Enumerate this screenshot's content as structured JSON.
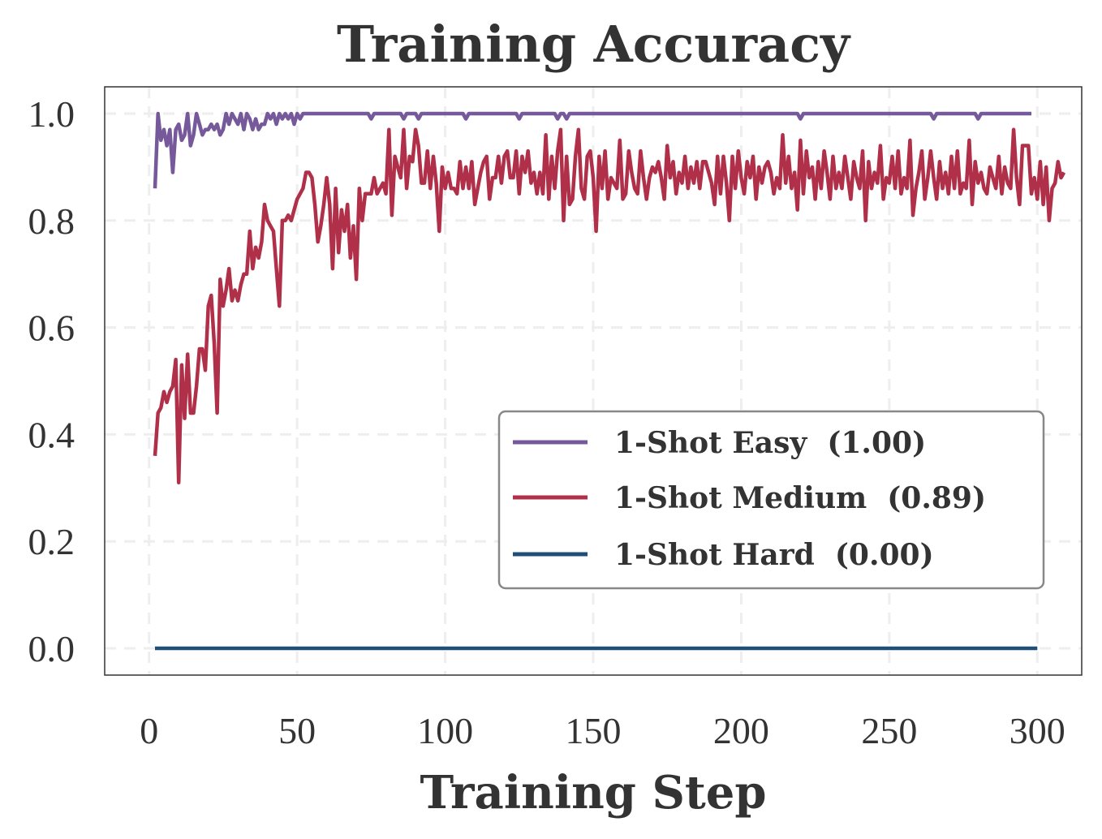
{
  "chart_data": {
    "type": "line",
    "title": "Training Accuracy",
    "xlabel": "Training Step",
    "ylabel": "",
    "xlim": [
      -15,
      315
    ],
    "ylim": [
      -0.05,
      1.05
    ],
    "xticks": [
      0,
      50,
      100,
      150,
      200,
      250,
      300
    ],
    "yticks": [
      0.0,
      0.2,
      0.4,
      0.6,
      0.8,
      1.0
    ],
    "ytick_labels": [
      "0.0",
      "0.2",
      "0.4",
      "0.6",
      "0.8",
      "1.0"
    ],
    "xtick_labels": [
      "0",
      "50",
      "100",
      "150",
      "200",
      "250",
      "300"
    ],
    "grid": true,
    "legend_position": "center-right",
    "series": [
      {
        "name": "1-Shot Easy",
        "legend_label": "1-Shot Easy  (1.00)",
        "color": "#76599a",
        "x_start": 2,
        "values": [
          0.86,
          1.0,
          0.95,
          0.97,
          0.94,
          0.97,
          0.89,
          0.97,
          0.98,
          0.95,
          0.96,
          1.0,
          0.94,
          0.96,
          1.0,
          0.98,
          0.96,
          0.97,
          0.97,
          0.98,
          0.97,
          0.98,
          0.96,
          0.97,
          1.0,
          0.98,
          1.0,
          0.99,
          0.98,
          1.0,
          0.97,
          1.0,
          0.99,
          0.97,
          0.99,
          0.97,
          0.98,
          0.98,
          1.0,
          0.99,
          1.0,
          0.98,
          1.0,
          0.99,
          1.0,
          0.99,
          1.0,
          0.98,
          1.0,
          0.99,
          1.0,
          1.0,
          1.0,
          1.0,
          1.0,
          1.0,
          1.0,
          1.0,
          1.0,
          1.0,
          1.0,
          1.0,
          1.0,
          1.0,
          1.0,
          1.0,
          1.0,
          1.0,
          1.0,
          1.0,
          1.0,
          1.0,
          1.0,
          0.99,
          1.0,
          1.0,
          1.0,
          1.0,
          1.0,
          1.0,
          1.0,
          1.0,
          1.0,
          1.0,
          0.99,
          1.0,
          1.0,
          1.0,
          1.0,
          0.99,
          1.0,
          1.0,
          1.0,
          1.0,
          1.0,
          1.0,
          1.0,
          1.0,
          1.0,
          1.0,
          1.0,
          1.0,
          1.0,
          1.0,
          1.0,
          0.99,
          1.0,
          1.0,
          1.0,
          1.0,
          1.0,
          1.0,
          1.0,
          1.0,
          1.0,
          1.0,
          1.0,
          1.0,
          1.0,
          1.0,
          1.0,
          1.0,
          1.0,
          0.99,
          1.0,
          1.0,
          1.0,
          1.0,
          1.0,
          1.0,
          1.0,
          1.0,
          1.0,
          1.0,
          1.0,
          1.0,
          0.99,
          1.0,
          1.0,
          0.99,
          1.0,
          1.0,
          1.0,
          1.0,
          1.0,
          1.0,
          1.0,
          1.0,
          1.0,
          1.0,
          1.0,
          1.0,
          1.0,
          1.0,
          1.0,
          1.0,
          1.0,
          1.0,
          1.0,
          1.0,
          1.0,
          1.0,
          1.0,
          1.0,
          1.0,
          1.0,
          1.0,
          1.0,
          1.0,
          1.0,
          1.0,
          1.0,
          1.0,
          1.0,
          1.0,
          1.0,
          1.0,
          1.0,
          1.0,
          1.0,
          1.0,
          1.0,
          1.0,
          1.0,
          1.0,
          1.0,
          1.0,
          1.0,
          1.0,
          1.0,
          1.0,
          1.0,
          1.0,
          1.0,
          1.0,
          1.0,
          1.0,
          1.0,
          1.0,
          1.0,
          1.0,
          1.0,
          1.0,
          1.0,
          1.0,
          1.0,
          1.0,
          1.0,
          1.0,
          1.0,
          1.0,
          1.0,
          1.0,
          1.0,
          1.0,
          1.0,
          1.0,
          1.0,
          0.99,
          1.0,
          1.0,
          1.0,
          1.0,
          1.0,
          1.0,
          1.0,
          1.0,
          1.0,
          1.0,
          1.0,
          1.0,
          1.0,
          1.0,
          1.0,
          1.0,
          1.0,
          1.0,
          1.0,
          1.0,
          1.0,
          1.0,
          1.0,
          1.0,
          1.0,
          1.0,
          1.0,
          1.0,
          1.0,
          1.0,
          1.0,
          1.0,
          1.0,
          1.0,
          1.0,
          1.0,
          1.0,
          1.0,
          1.0,
          1.0,
          1.0,
          1.0,
          1.0,
          1.0,
          0.99,
          1.0,
          1.0,
          1.0,
          1.0,
          1.0,
          1.0,
          1.0,
          1.0,
          1.0,
          1.0,
          1.0,
          1.0,
          1.0,
          1.0,
          0.99,
          1.0,
          1.0,
          1.0,
          1.0,
          1.0,
          1.0,
          1.0,
          1.0,
          1.0,
          1.0,
          1.0,
          1.0,
          1.0,
          1.0,
          1.0,
          1.0,
          1.0,
          1.0
        ]
      },
      {
        "name": "1-Shot Medium",
        "legend_label": "1-Shot Medium  (0.89)",
        "color": "#b0304a",
        "x_start": 2,
        "values": [
          0.36,
          0.44,
          0.45,
          0.48,
          0.46,
          0.48,
          0.49,
          0.54,
          0.31,
          0.53,
          0.43,
          0.55,
          0.44,
          0.44,
          0.49,
          0.56,
          0.56,
          0.52,
          0.64,
          0.66,
          0.57,
          0.44,
          0.69,
          0.64,
          0.67,
          0.71,
          0.65,
          0.67,
          0.65,
          0.68,
          0.7,
          0.7,
          0.78,
          0.71,
          0.75,
          0.73,
          0.76,
          0.83,
          0.8,
          0.79,
          0.78,
          0.71,
          0.64,
          0.8,
          0.8,
          0.81,
          0.8,
          0.82,
          0.84,
          0.85,
          0.86,
          0.89,
          0.89,
          0.88,
          0.83,
          0.76,
          0.79,
          0.83,
          0.88,
          0.83,
          0.71,
          0.86,
          0.74,
          0.82,
          0.78,
          0.83,
          0.73,
          0.79,
          0.69,
          0.86,
          0.8,
          0.85,
          0.85,
          0.85,
          0.88,
          0.85,
          0.86,
          0.87,
          0.85,
          0.97,
          0.81,
          0.92,
          0.9,
          0.88,
          0.97,
          0.86,
          0.92,
          0.91,
          0.97,
          0.94,
          0.87,
          0.87,
          0.93,
          0.86,
          0.92,
          0.87,
          0.78,
          0.9,
          0.86,
          0.89,
          0.86,
          0.86,
          0.85,
          0.91,
          0.86,
          0.9,
          0.86,
          0.91,
          0.83,
          0.86,
          0.89,
          0.91,
          0.92,
          0.84,
          0.88,
          0.88,
          0.92,
          0.87,
          0.92,
          0.93,
          0.88,
          0.88,
          0.93,
          0.85,
          0.92,
          0.89,
          0.93,
          0.87,
          0.89,
          0.85,
          0.89,
          0.85,
          0.96,
          0.84,
          0.92,
          0.86,
          0.93,
          0.97,
          0.8,
          0.92,
          0.83,
          0.84,
          0.92,
          0.97,
          0.86,
          0.84,
          0.92,
          0.93,
          0.88,
          0.78,
          0.92,
          0.86,
          0.93,
          0.84,
          0.88,
          0.87,
          0.86,
          0.95,
          0.84,
          0.85,
          0.93,
          0.89,
          0.86,
          0.85,
          0.93,
          0.88,
          0.84,
          0.88,
          0.9,
          0.89,
          0.91,
          0.88,
          0.84,
          0.94,
          0.88,
          0.91,
          0.85,
          0.89,
          0.87,
          0.92,
          0.86,
          0.9,
          0.87,
          0.91,
          0.86,
          0.91,
          0.91,
          0.89,
          0.87,
          0.83,
          0.92,
          0.85,
          0.92,
          0.87,
          0.8,
          0.92,
          0.86,
          0.93,
          0.88,
          0.85,
          0.91,
          0.88,
          0.92,
          0.84,
          0.9,
          0.87,
          0.9,
          0.91,
          0.89,
          0.85,
          0.88,
          0.86,
          0.96,
          0.87,
          0.92,
          0.86,
          0.89,
          0.82,
          0.95,
          0.85,
          0.93,
          0.88,
          0.9,
          0.84,
          0.91,
          0.86,
          0.93,
          0.89,
          0.84,
          0.92,
          0.86,
          0.89,
          0.86,
          0.92,
          0.88,
          0.84,
          0.91,
          0.88,
          0.86,
          0.93,
          0.8,
          0.91,
          0.86,
          0.89,
          0.87,
          0.94,
          0.84,
          0.88,
          0.87,
          0.92,
          0.86,
          0.93,
          0.85,
          0.88,
          0.86,
          0.95,
          0.81,
          0.86,
          0.89,
          0.93,
          0.84,
          0.88,
          0.93,
          0.88,
          0.84,
          0.91,
          0.86,
          0.89,
          0.85,
          0.92,
          0.86,
          0.93,
          0.85,
          0.87,
          0.86,
          0.95,
          0.83,
          0.91,
          0.87,
          0.89,
          0.86,
          0.85,
          0.9,
          0.88,
          0.86,
          0.92,
          0.85,
          0.9,
          0.87,
          0.86,
          0.97,
          0.88,
          0.83,
          0.94,
          0.94,
          0.94,
          0.85,
          0.88,
          0.84,
          0.91,
          0.83,
          0.9,
          0.8,
          0.86,
          0.87,
          0.91,
          0.88,
          0.89
        ]
      },
      {
        "name": "1-Shot Hard",
        "legend_label": "1-Shot Hard  (0.00)",
        "color": "#1f4e79",
        "x_start": 2,
        "x_end": 300,
        "constant": 0.0
      }
    ]
  }
}
